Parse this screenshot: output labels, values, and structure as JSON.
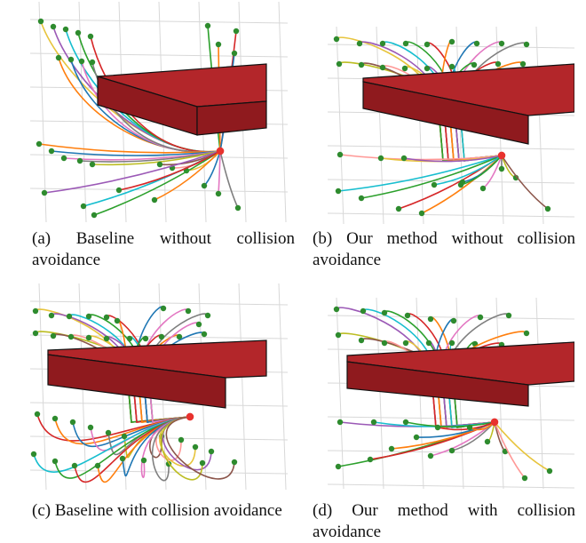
{
  "figure": {
    "panels": [
      {
        "id": "a",
        "label": "(a)",
        "caption": "Baseline without collision avoidance"
      },
      {
        "id": "b",
        "label": "(b)",
        "caption": "Our method without collision avoidance"
      },
      {
        "id": "c",
        "label": "(c)",
        "caption": "Baseline with collision avoidance"
      },
      {
        "id": "d",
        "label": "(d)",
        "caption": "Our method with collision avoidance"
      }
    ]
  },
  "colors": {
    "obstacle_top": "#b3262a",
    "obstacle_front": "#8f1a1e",
    "start_point": "#2e8b2e",
    "goal_point": "#e8322e",
    "grid": "#d8d8d8",
    "trajectories": [
      "#e7c43c",
      "#9b59b6",
      "#17becf",
      "#2ca02c",
      "#d62728",
      "#ff7f0e",
      "#1f77b4",
      "#e377c2",
      "#7f7f7f",
      "#bcbd22",
      "#8c564b",
      "#ff9896"
    ]
  }
}
